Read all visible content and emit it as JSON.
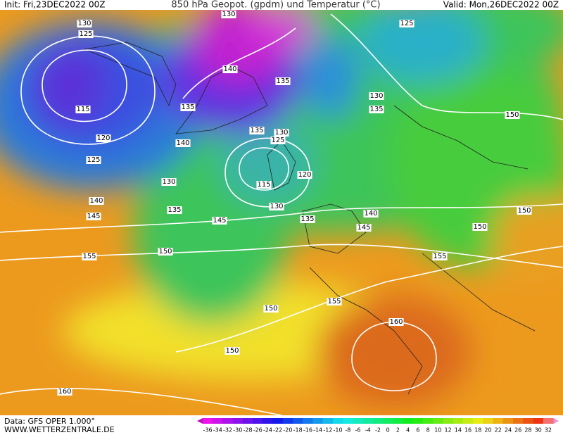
{
  "header": {
    "init": "Init: Fri,23DEC2022 00Z",
    "title": "850 hPa Geopot. (gpdm) und Temperatur (°C)",
    "valid": "Valid: Mon,26DEC2022 00Z"
  },
  "footer": {
    "data": "Data: GFS OPER 1.000°",
    "site": "WWW.WETTERZENTRALE.DE"
  },
  "contour_labels": [
    130,
    130,
    125,
    125,
    140,
    135,
    115,
    135,
    130,
    135,
    150,
    135,
    130,
    125,
    120,
    140,
    125,
    120,
    130,
    115,
    140,
    135,
    130,
    140,
    150,
    145,
    145,
    135,
    145,
    150,
    150,
    155,
    155,
    155,
    150,
    160,
    150,
    160
  ],
  "colorbar": {
    "ticks": [
      -36,
      -34,
      -32,
      -30,
      -28,
      -26,
      -24,
      -22,
      -20,
      -18,
      -16,
      -14,
      -12,
      -10,
      -8,
      -6,
      -4,
      -2,
      0,
      2,
      4,
      6,
      8,
      10,
      12,
      14,
      16,
      18,
      20,
      22,
      24,
      26,
      28,
      30,
      32
    ]
  }
}
